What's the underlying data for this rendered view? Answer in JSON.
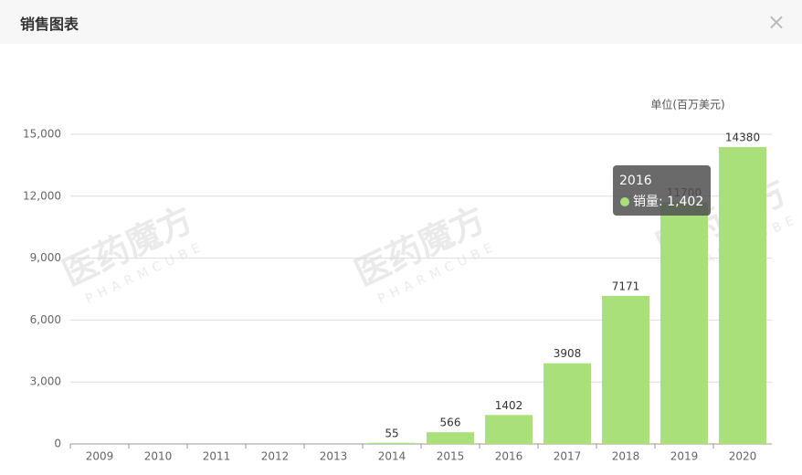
{
  "header": {
    "title": "销售图表"
  },
  "chart_data": {
    "type": "bar",
    "unit_label": "单位(百万美元)",
    "categories": [
      "2009",
      "2010",
      "2011",
      "2012",
      "2013",
      "2014",
      "2015",
      "2016",
      "2017",
      "2018",
      "2019",
      "2020"
    ],
    "series": [
      {
        "name": "销量",
        "color": "#a9e07a",
        "values": [
          null,
          null,
          null,
          null,
          null,
          55,
          566,
          1402,
          3908,
          7171,
          11700,
          14380
        ]
      }
    ],
    "ylim": [
      0,
      15000
    ],
    "yticks": [
      0,
      {
        "value": 3000,
        "label": "3,000"
      },
      {
        "value": 6000,
        "label": "6,000"
      },
      {
        "value": 9000,
        "label": "9,000"
      },
      {
        "value": 12000,
        "label": "12,000"
      },
      {
        "value": 15000,
        "label": "15,000"
      }
    ],
    "grid": true
  },
  "tooltip": {
    "title": "2016",
    "text": "销量: 1,402"
  },
  "watermark": {
    "text": "医药魔方",
    "subtext": "PHARMCUBE"
  }
}
